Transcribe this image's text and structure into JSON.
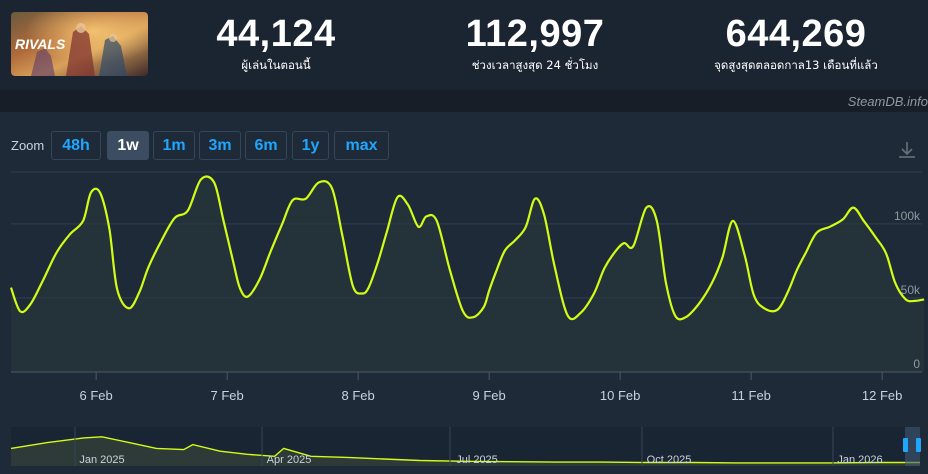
{
  "header": {
    "current_players": "44,124",
    "current_label": "ผู้เล่นในตอนนี้",
    "peak_24h": "112,997",
    "peak_24h_label": "ช่วงเวลาสูงสุด 24 ชั่วโมง",
    "all_time_peak": "644,269",
    "all_time_label": "จุดสูงสุดตลอดกาล13 เดือนที่แล้ว",
    "game_logo_text": "RIVALS"
  },
  "brand": "SteamDB.info",
  "zoom": {
    "label": "Zoom",
    "options": [
      "48h",
      "1w",
      "1m",
      "3m",
      "6m",
      "1y",
      "max"
    ],
    "selected": "1w"
  },
  "colors": {
    "line": "#d2fc16",
    "background": "#1e2a38",
    "active_zoom": "#3d4d61",
    "zoom_text": "#1fa6ff"
  },
  "chart_data": {
    "type": "line",
    "title": "",
    "xlabel": "",
    "ylabel": "",
    "x_tick_labels": [
      "6 Feb",
      "7 Feb",
      "8 Feb",
      "9 Feb",
      "10 Feb",
      "11 Feb",
      "12 Feb"
    ],
    "y_tick_labels": [
      "0",
      "50k",
      "100k"
    ],
    "ylim": [
      0,
      135000
    ],
    "grid": true,
    "series": [
      {
        "name": "",
        "x": [
          5.35,
          5.42,
          5.5,
          5.6,
          5.7,
          5.8,
          5.9,
          5.96,
          6.03,
          6.1,
          6.16,
          6.25,
          6.33,
          6.4,
          6.5,
          6.6,
          6.7,
          6.8,
          6.9,
          6.97,
          7.05,
          7.1,
          7.16,
          7.25,
          7.33,
          7.42,
          7.5,
          7.6,
          7.7,
          7.8,
          7.88,
          7.96,
          8.03,
          8.08,
          8.15,
          8.22,
          8.3,
          8.38,
          8.46,
          8.52,
          8.6,
          8.7,
          8.8,
          8.88,
          8.96,
          9.0,
          9.05,
          9.12,
          9.2,
          9.28,
          9.35,
          9.42,
          9.5,
          9.6,
          9.7,
          9.8,
          9.88,
          9.96,
          10.03,
          10.1,
          10.2,
          10.28,
          10.35,
          10.42,
          10.5,
          10.6,
          10.7,
          10.78,
          10.86,
          10.95,
          11.02,
          11.1,
          11.2,
          11.28,
          11.35,
          11.42,
          11.5,
          11.6,
          11.7,
          11.78,
          11.86,
          11.95,
          12.03,
          12.1,
          12.18,
          12.25,
          12.32
        ],
        "values": [
          57000,
          41000,
          46000,
          63000,
          81000,
          93000,
          102000,
          121000,
          121000,
          97000,
          56000,
          43000,
          54000,
          71000,
          89000,
          104000,
          109000,
          130000,
          128000,
          103000,
          73000,
          56000,
          51000,
          63000,
          81000,
          100000,
          116000,
          117000,
          128000,
          124000,
          92000,
          58000,
          53000,
          57000,
          74000,
          95000,
          118000,
          113000,
          98000,
          105000,
          102000,
          69000,
          41000,
          37000,
          44000,
          55000,
          67000,
          82000,
          89000,
          98000,
          117000,
          106000,
          71000,
          38000,
          40000,
          53000,
          70000,
          81000,
          87000,
          85000,
          111000,
          102000,
          60000,
          38000,
          37000,
          46000,
          60000,
          77000,
          102000,
          79000,
          52000,
          43000,
          42000,
          54000,
          69000,
          81000,
          94000,
          98000,
          103000,
          111000,
          102000,
          91000,
          80000,
          60000,
          49000,
          48000,
          49000
        ]
      }
    ]
  },
  "navigator": {
    "labels": [
      "Jan 2025",
      "Apr 2025",
      "Jul 2025",
      "Oct 2025",
      "Jan 2026"
    ]
  }
}
